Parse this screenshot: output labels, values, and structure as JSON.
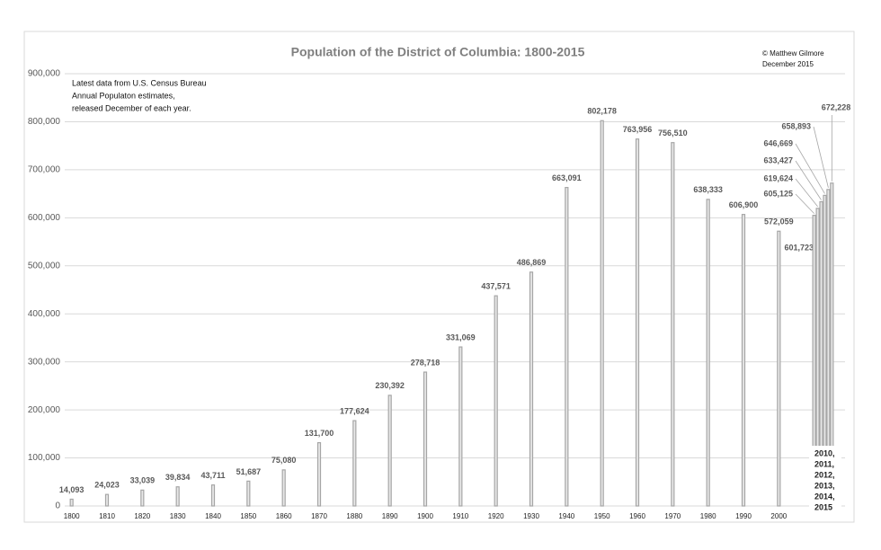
{
  "chart_data": {
    "type": "bar",
    "title": "Population of the District of Columbia: 1800-2015",
    "annotations": [
      "Latest data from U.S. Census Bureau",
      "Annual Populaton estimates,",
      "released December of each year."
    ],
    "credit": [
      "© Matthew Gilmore",
      "December 2015"
    ],
    "x_note_lines": [
      "2010,",
      "2011,",
      "2012,",
      "2013,",
      "2014,",
      "2015"
    ],
    "x": [
      1800,
      1810,
      1820,
      1830,
      1840,
      1850,
      1860,
      1870,
      1880,
      1890,
      1900,
      1910,
      1920,
      1930,
      1940,
      1950,
      1960,
      1970,
      1980,
      1990,
      2000,
      2010,
      2010,
      2011,
      2012,
      2013,
      2014,
      2015
    ],
    "values": [
      14093,
      24023,
      33039,
      39834,
      43711,
      51687,
      75080,
      131700,
      177624,
      230392,
      278718,
      331069,
      437571,
      486869,
      663091,
      802178,
      763956,
      756510,
      638333,
      606900,
      572059,
      601723,
      605125,
      619624,
      633427,
      646669,
      658893,
      672228
    ],
    "value_labels": [
      "14,093",
      "24,023",
      "33,039",
      "39,834",
      "43,711",
      "51,687",
      "75,080",
      "131,700",
      "177,624",
      "230,392",
      "278,718",
      "331,069",
      "437,571",
      "486,869",
      "663,091",
      "802,178",
      "763,956",
      "756,510",
      "638,333",
      "606,900",
      "572,059",
      "601,723",
      "605,125",
      "619,624",
      "633,427",
      "646,669",
      "658,893",
      "672,228"
    ],
    "color": "#a6a6a6",
    "xlim": [
      1795,
      2020
    ],
    "xticks": [
      1800,
      1810,
      1820,
      1830,
      1840,
      1850,
      1860,
      1870,
      1880,
      1890,
      1900,
      1910,
      1920,
      1930,
      1940,
      1950,
      1960,
      1970,
      1980,
      1990,
      2000
    ],
    "ylim": [
      0,
      900000
    ],
    "yticks": [
      0,
      {
        "value": 100000,
        "label": "100,000"
      },
      {
        "value": 200000,
        "label": "200,000"
      },
      {
        "value": 300000,
        "label": "300,000"
      },
      {
        "value": 400000,
        "label": "400,000"
      },
      {
        "value": 500000,
        "label": "500,000"
      },
      {
        "value": 600000,
        "label": "600,000"
      },
      {
        "value": 700000,
        "label": "700,000"
      },
      {
        "value": 800000,
        "label": "800,000"
      },
      {
        "value": 900000,
        "label": "900,000"
      }
    ],
    "grid": true
  }
}
